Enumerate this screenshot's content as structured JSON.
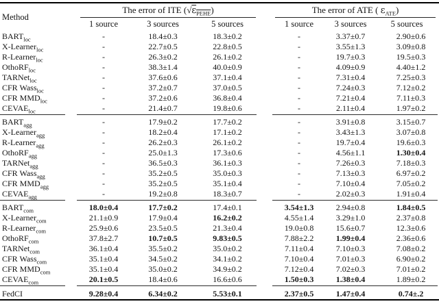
{
  "page": {
    "background": "#ffffff",
    "text_color": "#141414",
    "rule_color": "#2a2a2a"
  },
  "table": {
    "method_header": "Method",
    "col_headers": [
      "1 source",
      "3 sources",
      "5 sources"
    ],
    "ite_header": {
      "prefix": "The error of ITE (",
      "sqrt_symbol": "√",
      "radicand": "ε",
      "subscript": "PEHE",
      "suffix": ")"
    },
    "ate_header": {
      "prefix": "The error of ATE ( ",
      "symbol": "ε",
      "subscript": "ATE",
      "suffix": ")"
    },
    "groups": [
      {
        "name": "loc",
        "rows": [
          {
            "method": "BART",
            "sub": "loc",
            "cells": [
              "-",
              "18.4±0.3",
              "18.3±0.2",
              "-",
              "3.37±0.7",
              "2.90±0.6"
            ],
            "bold": []
          },
          {
            "method": "X-Learner",
            "sub": "loc",
            "cells": [
              "-",
              "22.7±0.5",
              "22.8±0.5",
              "-",
              "3.55±1.3",
              "3.09±0.8"
            ],
            "bold": []
          },
          {
            "method": "R-Learner",
            "sub": "loc",
            "cells": [
              "-",
              "26.3±0.2",
              "26.1±0.2",
              "-",
              "19.7±0.3",
              "19.5±0.3"
            ],
            "bold": []
          },
          {
            "method": "OthoRF",
            "sub": "loc",
            "cells": [
              "-",
              "38.3±1.4",
              "40.0±0.9",
              "-",
              "4.09±0.9",
              "4.40±1.2"
            ],
            "bold": []
          },
          {
            "method": "TARNet",
            "sub": "loc",
            "cells": [
              "-",
              "37.6±0.6",
              "37.1±0.4",
              "-",
              "7.31±0.4",
              "7.25±0.3"
            ],
            "bold": []
          },
          {
            "method": "CFR Wass",
            "sub": "loc",
            "cells": [
              "-",
              "37.2±0.7",
              "37.0±0.5",
              "-",
              "7.24±0.3",
              "7.12±0.2"
            ],
            "bold": []
          },
          {
            "method": "CFR MMD",
            "sub": "loc",
            "cells": [
              "-",
              "37.2±0.6",
              "36.8±0.4",
              "-",
              "7.21±0.4",
              "7.11±0.3"
            ],
            "bold": []
          },
          {
            "method": "CEVAE",
            "sub": "loc",
            "cells": [
              "-",
              "21.4±0.7",
              "19.8±0.6",
              "-",
              "2.11±0.4",
              "1.97±0.2"
            ],
            "bold": []
          }
        ]
      },
      {
        "name": "agg",
        "rows": [
          {
            "method": "BART",
            "sub": "agg",
            "cells": [
              "-",
              "17.9±0.2",
              "17.7±0.2",
              "-",
              "3.91±0.8",
              "3.15±0.7"
            ],
            "bold": []
          },
          {
            "method": "X-Learner",
            "sub": "agg",
            "cells": [
              "-",
              "18.2±0.4",
              "17.1±0.2",
              "-",
              "3.43±1.3",
              "3.07±0.8"
            ],
            "bold": []
          },
          {
            "method": "R-Learner",
            "sub": "agg",
            "cells": [
              "-",
              "26.2±0.3",
              "26.1±0.2",
              "-",
              "19.7±0.4",
              "19.6±0.3"
            ],
            "bold": []
          },
          {
            "method": "OthoRF",
            "sub": "agg",
            "cells": [
              "-",
              "25.0±1.3",
              "17.3±0.6",
              "-",
              "4.56±1.1",
              "1.30±0.4"
            ],
            "bold": [
              5
            ]
          },
          {
            "method": "TARNet",
            "sub": "agg",
            "cells": [
              "-",
              "36.5±0.3",
              "36.1±0.3",
              "-",
              "7.26±0.3",
              "7.18±0.3"
            ],
            "bold": []
          },
          {
            "method": "CFR Wass",
            "sub": "agg",
            "cells": [
              "-",
              "35.2±0.5",
              "35.0±0.3",
              "-",
              "7.13±0.3",
              "6.97±0.2"
            ],
            "bold": []
          },
          {
            "method": "CFR MMD",
            "sub": "agg",
            "cells": [
              "-",
              "35.2±0.5",
              "35.1±0.4",
              "-",
              "7.10±0.4",
              "7.05±0.2"
            ],
            "bold": []
          },
          {
            "method": "CEVAE",
            "sub": "agg",
            "cells": [
              "-",
              "19.2±0.8",
              "18.3±0.7",
              "-",
              "2.02±0.3",
              "1.91±0.4"
            ],
            "bold": []
          }
        ]
      },
      {
        "name": "com",
        "rows": [
          {
            "method": "BART",
            "sub": "com",
            "cells": [
              "18.0±0.4",
              "17.7±0.2",
              "17.4±0.1",
              "3.54±1.3",
              "2.94±0.8",
              "1.84±0.5"
            ],
            "bold": [
              0,
              1,
              3,
              5
            ]
          },
          {
            "method": "X-Learner",
            "sub": "com",
            "cells": [
              "21.1±0.9",
              "17.9±0.4",
              "16.2±0.2",
              "4.55±1.4",
              "3.29±1.0",
              "2.37±0.8"
            ],
            "bold": [
              2
            ]
          },
          {
            "method": "R-Learner",
            "sub": "com",
            "cells": [
              "25.9±0.6",
              "23.5±0.5",
              "21.3±0.4",
              "19.0±0.8",
              "15.6±0.7",
              "12.3±0.6"
            ],
            "bold": []
          },
          {
            "method": "OthoRF",
            "sub": "com",
            "cells": [
              "37.8±2.7",
              "10.7±0.5",
              "9.83±0.5",
              "7.88±2.2",
              "1.99±0.4",
              "2.36±0.6"
            ],
            "bold": [
              1,
              2,
              4
            ]
          },
          {
            "method": "TARNet",
            "sub": "com",
            "cells": [
              "36.1±0.4",
              "35.5±0.2",
              "35.0±0.2",
              "7.11±0.4",
              "7.10±0.3",
              "7.08±0.2"
            ],
            "bold": []
          },
          {
            "method": "CFR Wass",
            "sub": "com",
            "cells": [
              "35.1±0.4",
              "34.5±0.2",
              "34.1±0.2",
              "7.10±0.4",
              "7.01±0.3",
              "6.90±0.2"
            ],
            "bold": []
          },
          {
            "method": "CFR MMD",
            "sub": "com",
            "cells": [
              "35.1±0.4",
              "35.0±0.2",
              "34.9±0.2",
              "7.12±0.4",
              "7.02±0.3",
              "7.01±0.2"
            ],
            "bold": []
          },
          {
            "method": "CEVAE",
            "sub": "com",
            "cells": [
              "20.1±0.5",
              "18.4±0.6",
              "16.6±0.6",
              "1.50±0.3",
              "1.38±0.4",
              "1.89±0.2"
            ],
            "bold": [
              0,
              3,
              4
            ]
          }
        ]
      },
      {
        "name": "fedci",
        "rows": [
          {
            "method": "FedCI",
            "sub": "",
            "cells": [
              "9.28±0.4",
              "6.34±0.2",
              "5.53±0.1",
              "2.37±0.5",
              "1.47±0.4",
              "0.74±.2"
            ],
            "bold": [
              0,
              1,
              2,
              3,
              4,
              5
            ]
          }
        ]
      }
    ]
  }
}
